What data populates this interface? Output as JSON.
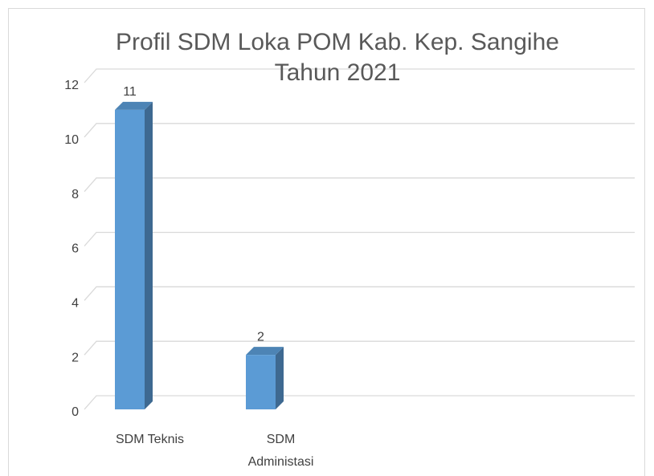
{
  "chart_data": {
    "type": "bar3d",
    "title": "Profil SDM Loka POM Kab. Kep. Sangihe Tahun 2021",
    "categories": [
      "SDM Teknis",
      "SDM Administasi"
    ],
    "values": [
      11,
      2
    ],
    "value_labels": [
      "11",
      "2"
    ],
    "color": "#5b9bd5",
    "ylim": [
      0,
      12
    ],
    "yticks": [
      0,
      2,
      4,
      6,
      8,
      10,
      12
    ],
    "grid": true
  }
}
